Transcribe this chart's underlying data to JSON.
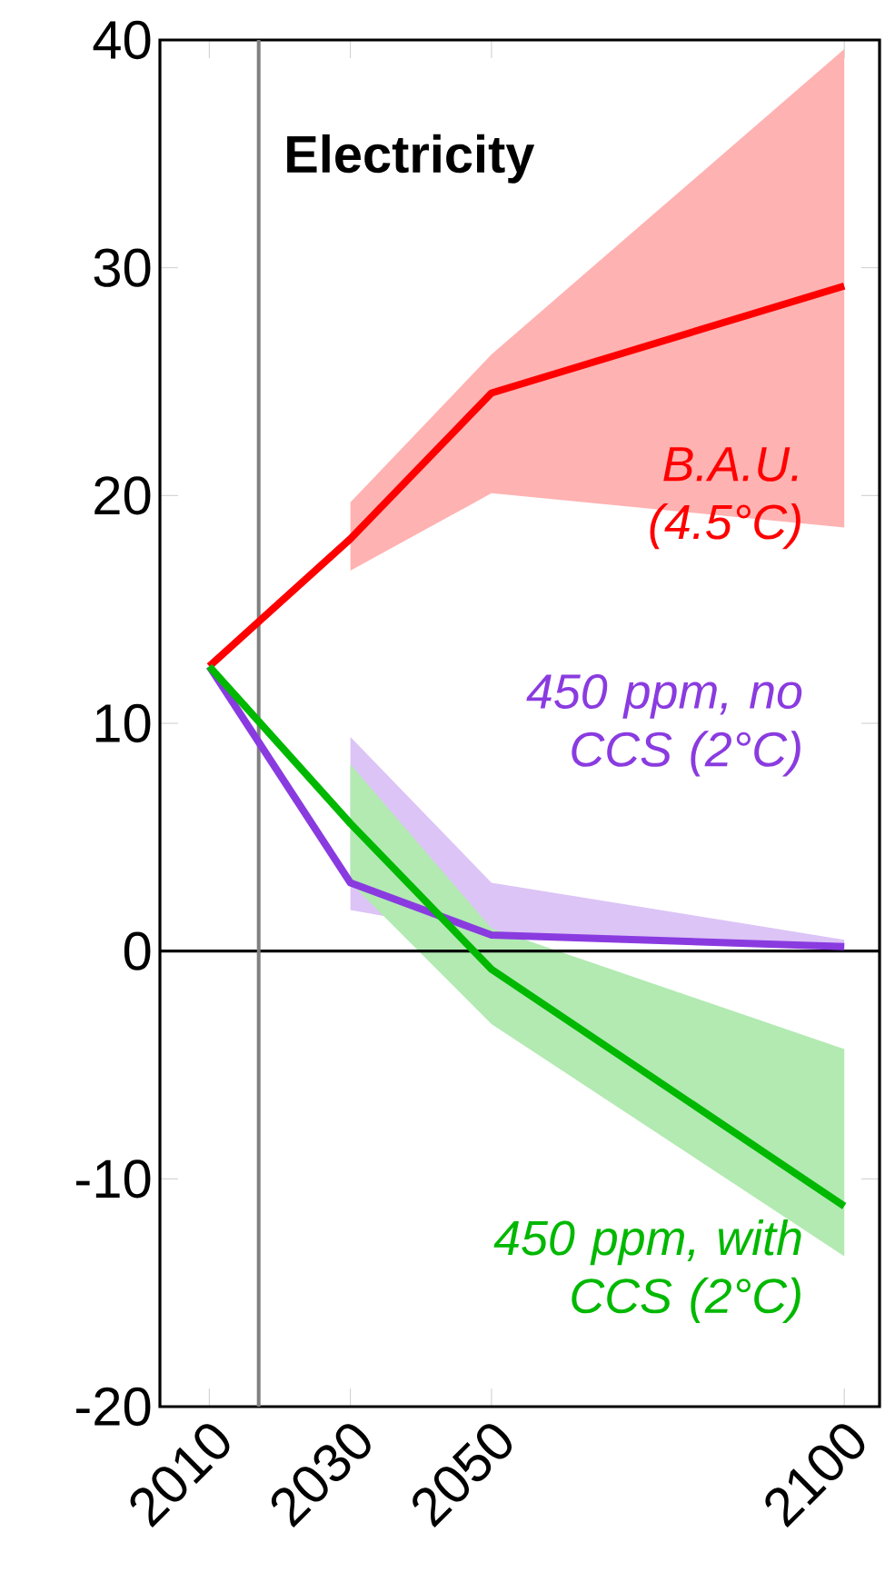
{
  "chart_data": {
    "type": "line",
    "title": "Electricity",
    "x": [
      2010,
      2030,
      2050,
      2100
    ],
    "xlim": [
      2003,
      2105
    ],
    "ylim": [
      -20,
      40
    ],
    "xticks": [
      2010,
      2030,
      2050,
      2100
    ],
    "yticks": [
      -20,
      -10,
      0,
      10,
      20,
      30,
      40
    ],
    "ref_lines": [
      {
        "axis": "y",
        "value": 0,
        "color": "#000000"
      },
      {
        "axis": "x",
        "value": 2017,
        "color": "#808080"
      }
    ],
    "series": [
      {
        "name": "B.A.U. (4.5°C)",
        "color": "#ff0000",
        "values": [
          12.5,
          18.1,
          24.5,
          29.2
        ],
        "lower": [
          null,
          16.7,
          20.1,
          18.6
        ],
        "upper": [
          null,
          19.7,
          26.2,
          39.6
        ]
      },
      {
        "name": "450 ppm, no CCS (2°C)",
        "color": "#8a3be0",
        "values": [
          12.5,
          3.0,
          0.7,
          0.2
        ],
        "lower": [
          null,
          1.8,
          0.7,
          0.1
        ],
        "upper": [
          null,
          9.4,
          3.0,
          0.5
        ]
      },
      {
        "name": "450 ppm, with CCS (2°C)",
        "color": "#00b800",
        "values": [
          12.5,
          5.6,
          -0.8,
          -11.2
        ],
        "lower": [
          null,
          3.0,
          -3.2,
          -13.4
        ],
        "upper": [
          null,
          8.2,
          1.0,
          -4.3
        ]
      }
    ]
  }
}
